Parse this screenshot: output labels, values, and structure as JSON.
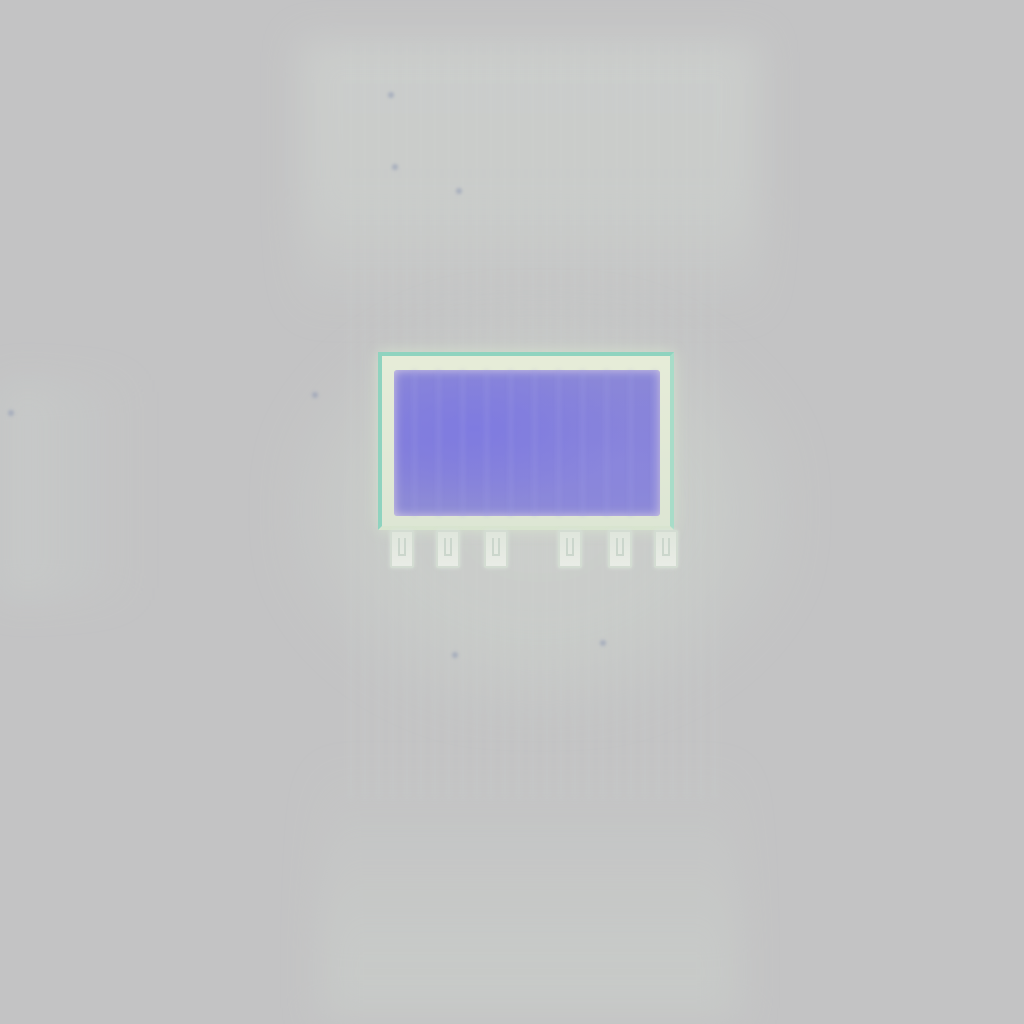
{
  "scene": {
    "description_colors": {
      "background": "#c3c3c4",
      "module_frame": "#dde6d4",
      "frame_edge": "#8fd3bf",
      "panel": "#8580da",
      "pins": "#e3e9e1"
    },
    "pin_count": 6
  }
}
